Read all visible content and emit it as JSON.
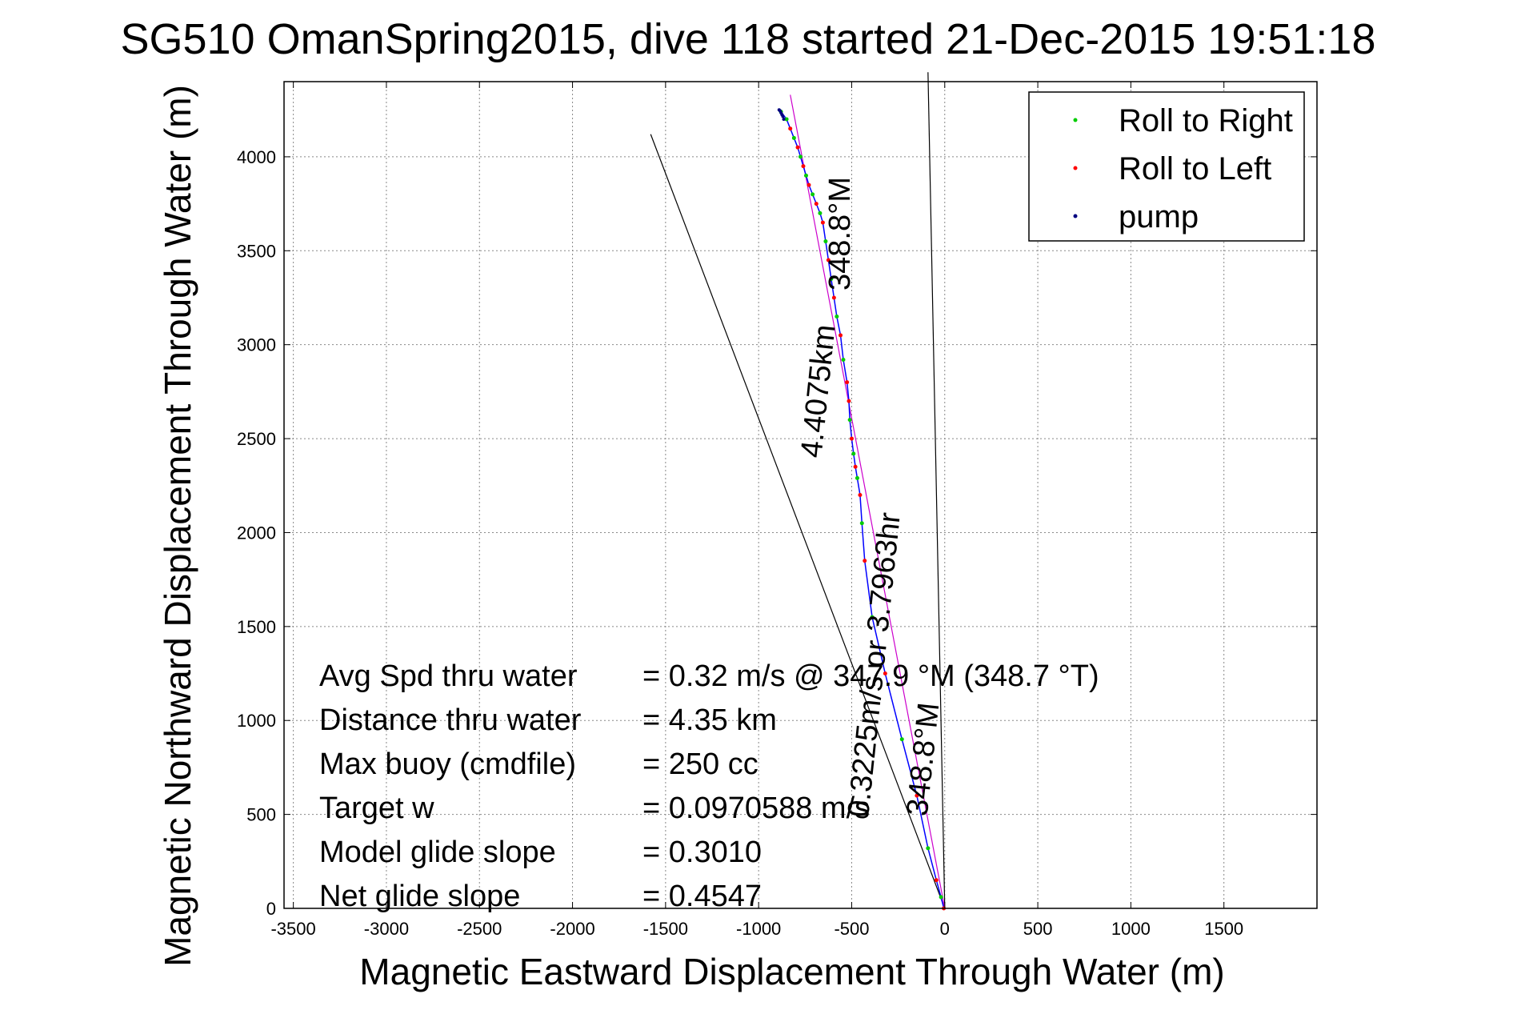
{
  "chart_data": {
    "type": "line",
    "title": "SG510 OmanSpring2015, dive 118 started 21-Dec-2015 19:51:18",
    "xlabel": "Magnetic Eastward Displacement Through Water (m)",
    "ylabel": "Magnetic Northward Displacement Through Water (m)",
    "xlim": [
      -3550,
      2000
    ],
    "ylim": [
      0,
      4400
    ],
    "xticks": [
      -3500,
      -3000,
      -2500,
      -2000,
      -1500,
      -1000,
      -500,
      0,
      500,
      1000,
      1500
    ],
    "yticks": [
      0,
      500,
      1000,
      1500,
      2000,
      2500,
      3000,
      3500,
      4000
    ],
    "grid": true,
    "legend_position": "top-right",
    "legend": [
      {
        "name": "Roll to Right",
        "color": "#00cc00"
      },
      {
        "name": "Roll to Left",
        "color": "#ff0000"
      },
      {
        "name": "pump",
        "color": "#000080"
      }
    ],
    "track": {
      "x": [
        -5,
        -20,
        -45,
        -90,
        -150,
        -230,
        -320,
        -390,
        -430,
        -445,
        -455,
        -470,
        -480,
        -490,
        -500,
        -510,
        -515,
        -525,
        -545,
        -560,
        -580,
        -595,
        -610,
        -625,
        -640,
        -655,
        -670,
        -690,
        -710,
        -730,
        -745,
        -760,
        -775,
        -790,
        -810,
        -830,
        -850,
        -865,
        -880,
        -890
      ],
      "y": [
        0,
        60,
        150,
        320,
        600,
        900,
        1250,
        1550,
        1850,
        2050,
        2200,
        2290,
        2350,
        2420,
        2500,
        2600,
        2700,
        2800,
        2920,
        3050,
        3150,
        3250,
        3350,
        3450,
        3550,
        3650,
        3700,
        3750,
        3800,
        3850,
        3900,
        3950,
        4000,
        4050,
        4100,
        4150,
        4200,
        4220,
        4240,
        4250
      ]
    },
    "roll_right_points": {
      "x": [
        -20,
        -90,
        -230,
        -390,
        -445,
        -470,
        -490,
        -510,
        -545,
        -580,
        -610,
        -640,
        -670,
        -710,
        -745,
        -775,
        -810,
        -850,
        -880
      ],
      "y": [
        60,
        320,
        900,
        1550,
        2050,
        2290,
        2420,
        2600,
        2920,
        3150,
        3350,
        3550,
        3700,
        3800,
        3900,
        4000,
        4100,
        4200,
        4240
      ]
    },
    "roll_left_points": {
      "x": [
        -5,
        -45,
        -150,
        -320,
        -430,
        -455,
        -480,
        -500,
        -515,
        -525,
        -560,
        -595,
        -625,
        -655,
        -690,
        -730,
        -760,
        -790,
        -830
      ],
      "y": [
        0,
        150,
        600,
        1250,
        1850,
        2200,
        2350,
        2500,
        2700,
        2800,
        3050,
        3250,
        3450,
        3650,
        3750,
        3850,
        3950,
        4050,
        4150
      ]
    },
    "pump_points": {
      "x": [
        -865,
        -870,
        -875,
        -880,
        -885,
        -890
      ],
      "y": [
        4200,
        4215,
        4225,
        4235,
        4245,
        4250
      ]
    },
    "heading_line": {
      "x": [
        0,
        -830
      ],
      "y": [
        0,
        4330
      ],
      "color": "#cc00cc"
    },
    "current_line_1": {
      "x": [
        0,
        -1580
      ],
      "y": [
        0,
        4120
      ],
      "color": "#000000"
    },
    "current_line_2": {
      "x": [
        0,
        -90
      ],
      "y": [
        0,
        4450
      ],
      "color": "#000000"
    },
    "annotations": {
      "heading_top": "348.8°M",
      "distance": "4.4075km",
      "speed": "0.3225m/s or 3.7963hr",
      "heading_bottom": "348.8°M"
    },
    "stats": [
      {
        "label": "Avg Spd thru water",
        "value": "=  0.32 m/s @ 347.9 °M (348.7 °T)"
      },
      {
        "label": "Distance thru water",
        "value": "=  4.35 km"
      },
      {
        "label": "Max buoy (cmdfile)",
        "value": "= 250 cc"
      },
      {
        "label": "Target w",
        "value": "= 0.0970588 m/s"
      },
      {
        "label": "Model glide slope",
        "value": "= 0.3010"
      },
      {
        "label": "Net glide slope",
        "value": "= 0.4547"
      }
    ]
  }
}
